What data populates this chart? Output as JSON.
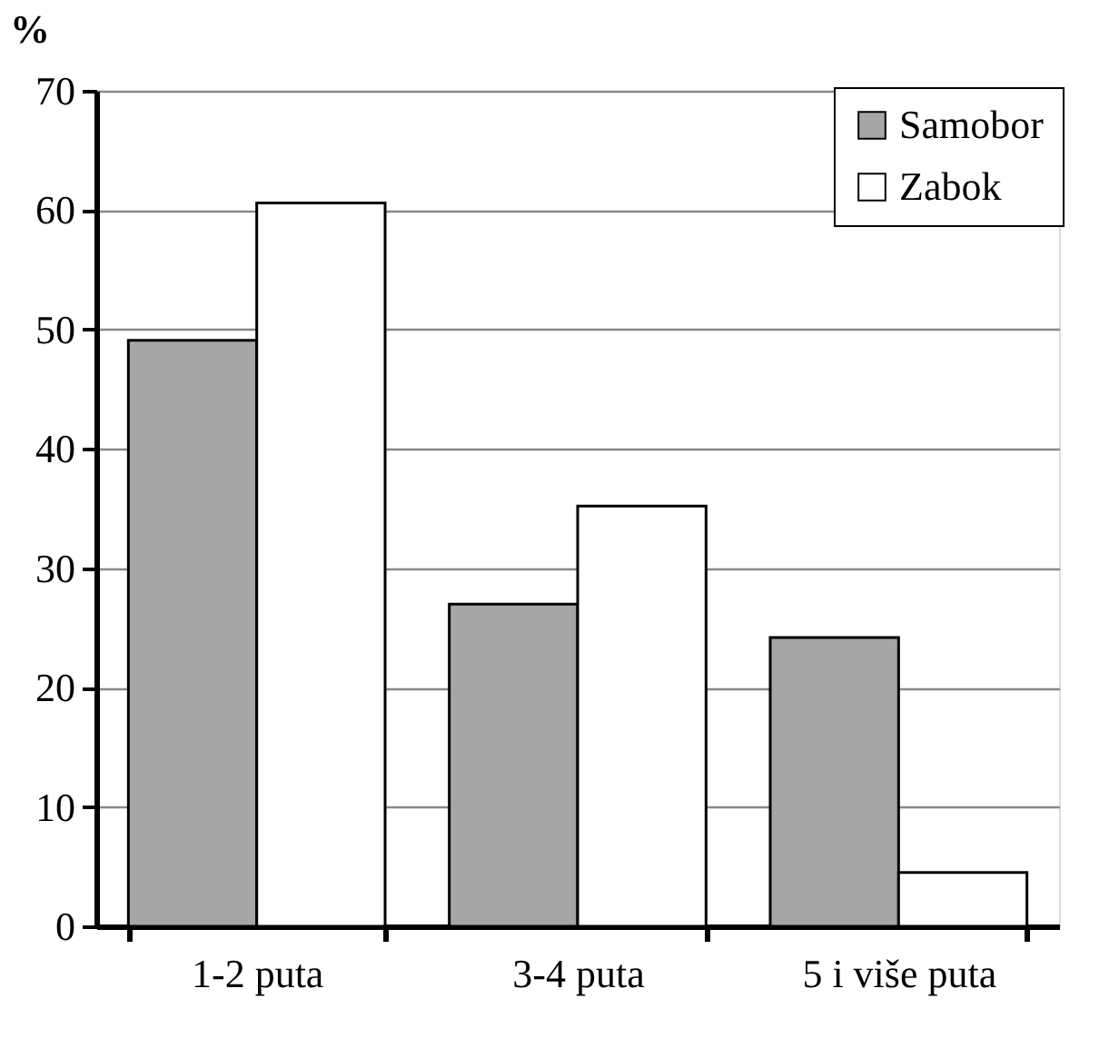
{
  "chart_data": {
    "type": "bar",
    "ylabel": "%",
    "categories": [
      "1-2 puta",
      "3-4 puta",
      "5 i više puta"
    ],
    "series": [
      {
        "name": "Samobor",
        "color": "#a6a6a6",
        "values": [
          49.1,
          27.0,
          24.2
        ]
      },
      {
        "name": "Zabok",
        "color": "#ffffff",
        "values": [
          60.6,
          35.2,
          4.5
        ]
      }
    ],
    "ylim": [
      0,
      70
    ],
    "yticks": [
      0,
      10,
      20,
      30,
      40,
      50,
      60,
      70
    ],
    "grid": "y",
    "legend": "top right"
  }
}
